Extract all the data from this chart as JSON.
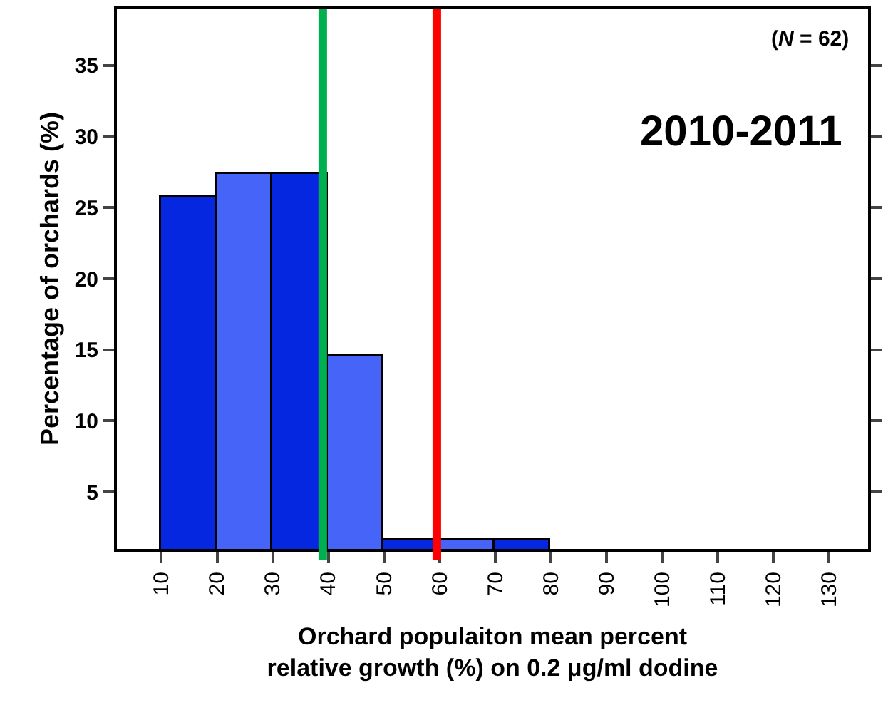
{
  "chart_data": {
    "type": "histogram",
    "xlabel": "Orchard populaiton mean percent\nrelative growth (%) on 0.2 μg/ml dodine",
    "ylabel": "Percentage of orchards (%)",
    "bins": [
      10,
      20,
      30,
      40,
      50,
      60,
      70,
      80
    ],
    "values": [
      25.8,
      27.4,
      27.4,
      14.5,
      1.6,
      1.6,
      1.6
    ],
    "colors": [
      "#0527e0",
      "#4664f7",
      "#0527e0",
      "#4664f7",
      "#0527e0",
      "#4664f7",
      "#0527e0"
    ],
    "xlim": [
      2,
      137
    ],
    "xticks": [
      10,
      20,
      30,
      40,
      50,
      60,
      70,
      80,
      90,
      100,
      110,
      120,
      130
    ],
    "ylim": [
      1,
      39
    ],
    "yticks": [
      5,
      10,
      15,
      20,
      25,
      30,
      35
    ],
    "ref_lines": [
      {
        "axis": "x",
        "value": 39,
        "color": "#00b050"
      },
      {
        "axis": "x",
        "value": 59.5,
        "color": "#ff0000"
      }
    ],
    "annotations": [
      "(*N* = 62)",
      "2010-2011"
    ]
  }
}
